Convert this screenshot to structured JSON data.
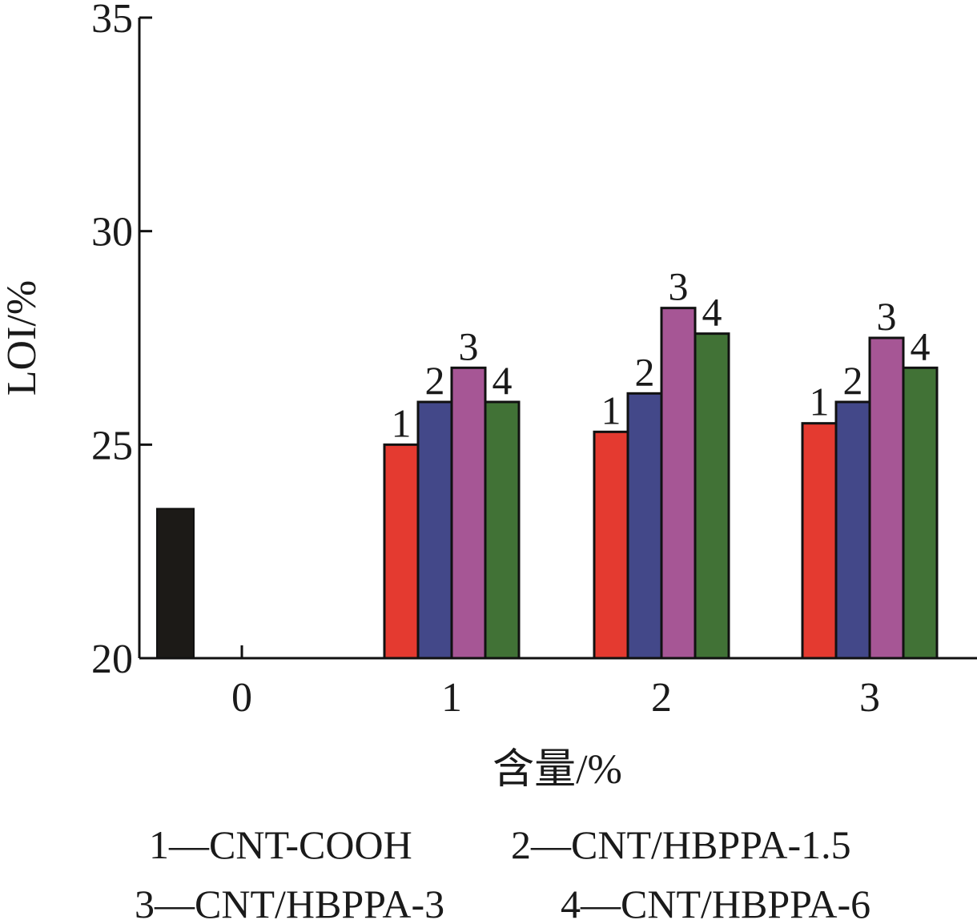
{
  "chart_data": {
    "type": "bar",
    "xlabel": "含量/%",
    "ylabel": "LOI/%",
    "ylim": [
      20,
      35
    ],
    "yticks": [
      "20",
      "25",
      "30",
      "35"
    ],
    "categories": [
      "0",
      "1",
      "2",
      "3"
    ],
    "baseline": {
      "category": "0",
      "value": 23.5,
      "color": "#1c1a17"
    },
    "series": [
      {
        "id": "1",
        "values": [
          null,
          25.0,
          25.3,
          25.5
        ],
        "color": "#e43a30"
      },
      {
        "id": "2",
        "values": [
          null,
          26.0,
          26.2,
          26.0
        ],
        "color": "#434889"
      },
      {
        "id": "3",
        "values": [
          null,
          26.8,
          28.2,
          27.5
        ],
        "color": "#a65695"
      },
      {
        "id": "4",
        "values": [
          null,
          26.0,
          27.6,
          26.8
        ],
        "color": "#417236"
      }
    ],
    "legend": [
      "1—CNT-COOH",
      "2—CNT/HBPPA-1.5",
      "3—CNT/HBPPA-3",
      "4—CNT/HBPPA-6"
    ],
    "grid": false,
    "legend_position": "bottom"
  }
}
